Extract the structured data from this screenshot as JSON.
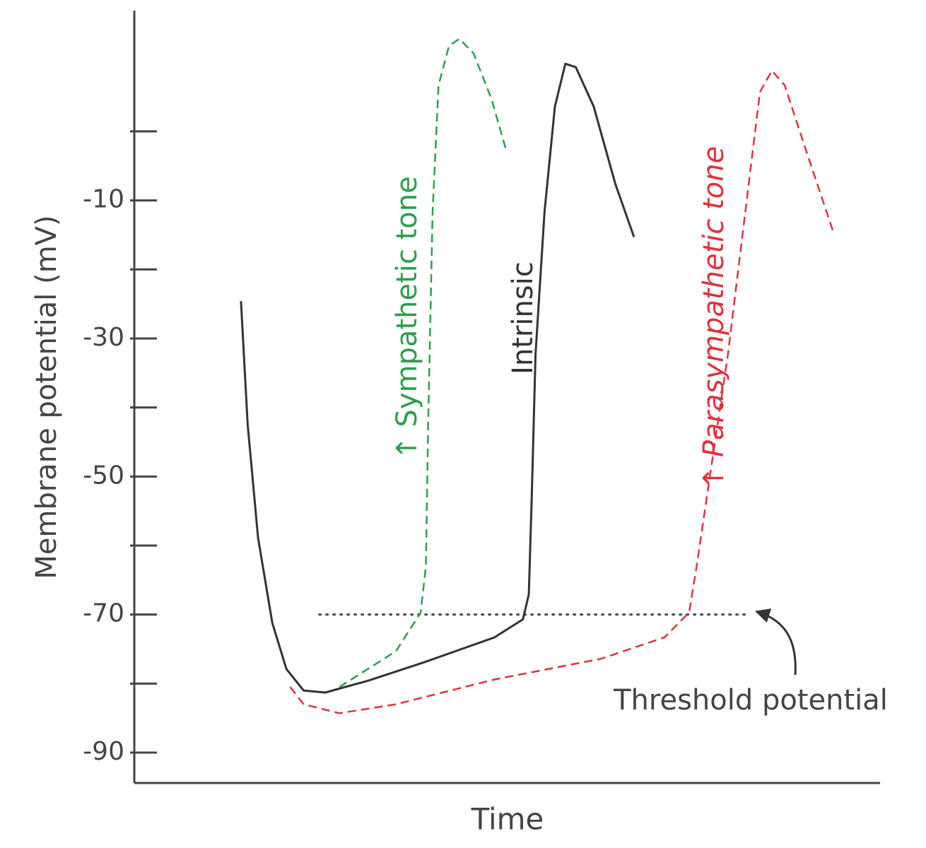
{
  "chart_data": {
    "type": "line",
    "y_label": "Membrane potential (mV)",
    "x_label": "Time",
    "xlim": [
      0,
      100
    ],
    "ylim": [
      -94.4,
      17.5
    ],
    "yticks": [
      -10,
      -30,
      -50,
      -70,
      -90
    ],
    "yminorticks": [
      0,
      -20,
      -40,
      -60,
      -80
    ],
    "series": [
      {
        "name": "Intrinsic",
        "color": "#333333",
        "dash": "solid",
        "x": [
          14.3,
          15.2,
          16.6,
          18.5,
          20.4,
          22.7,
          25.6,
          31.3,
          38.9,
          48.3,
          52.1,
          52.9,
          53.3,
          53.8,
          55.0,
          56.4,
          57.8,
          59.2,
          61.6,
          64.5,
          67.0
        ],
        "values": [
          -24.6,
          -42.5,
          -58.9,
          -71.2,
          -77.9,
          -81.0,
          -81.3,
          -79.6,
          -76.9,
          -73.3,
          -70.7,
          -67.1,
          -52.8,
          -32.3,
          -11.7,
          3.6,
          9.8,
          9.3,
          3.6,
          -7.6,
          -15.3
        ]
      },
      {
        "name": "↑ Sympathetic tone",
        "color": "#2e9e4e",
        "dash": "dashed",
        "x": [
          27.5,
          35.1,
          38.4,
          39.1,
          39.4,
          40.0,
          40.8,
          42.2,
          43.6,
          45.5,
          47.9,
          49.8
        ],
        "values": [
          -80.5,
          -75.3,
          -69.7,
          -63.0,
          -42.5,
          -11.7,
          6.7,
          12.4,
          13.4,
          11.3,
          4.7,
          -2.5
        ]
      },
      {
        "name": "↑ Parasympathetic tone",
        "color": "#e0323c",
        "dash": "dashed",
        "x": [
          20.9,
          22.7,
          27.5,
          35.1,
          48.3,
          62.6,
          71.1,
          74.4,
          75.4,
          76.8,
          79.6,
          82.5,
          83.9,
          85.5,
          87.2,
          90.0,
          93.8
        ],
        "values": [
          -80.5,
          -83.0,
          -84.3,
          -83.0,
          -79.4,
          -76.4,
          -73.3,
          -69.7,
          -63.0,
          -52.8,
          -32.3,
          -6.6,
          5.7,
          8.8,
          6.7,
          -2.5,
          -14.8
        ]
      }
    ],
    "threshold": {
      "label": "Threshold potential",
      "value": -70,
      "x": [
        24.8,
        82.0
      ],
      "color": "#444444"
    }
  }
}
